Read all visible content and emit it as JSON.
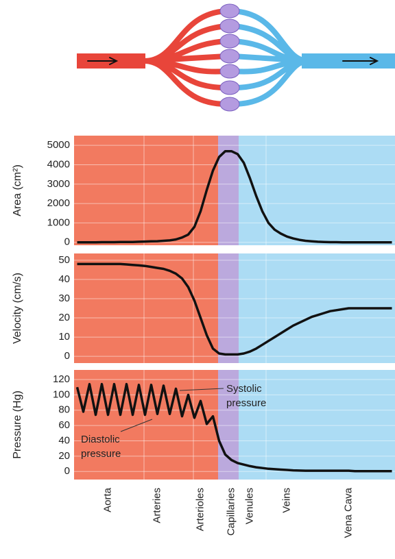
{
  "chart_data": [
    {
      "type": "line",
      "ylabel": "Area (cm²)",
      "color": "#111111",
      "ylim": [
        -150,
        5500
      ],
      "yticks": [
        0,
        1000,
        2000,
        3000,
        4000,
        5000
      ],
      "grid": true,
      "values": [
        0,
        0,
        0,
        0,
        10,
        10,
        10,
        20,
        20,
        20,
        30,
        40,
        50,
        60,
        80,
        100,
        150,
        250,
        400,
        800,
        1600,
        2700,
        3700,
        4400,
        4700,
        4700,
        4550,
        4100,
        3300,
        2400,
        1600,
        1000,
        650,
        450,
        300,
        200,
        130,
        80,
        50,
        30,
        20,
        10,
        10,
        0,
        0,
        0,
        0,
        0,
        0,
        0,
        0,
        0
      ]
    },
    {
      "type": "line",
      "ylabel": "Velocity (cm/s)",
      "color": "#111111",
      "ylim": [
        -3.5,
        53.5
      ],
      "yticks": [
        0,
        10,
        20,
        30,
        40,
        50
      ],
      "grid": true,
      "values": [
        48,
        48,
        48,
        48,
        48,
        48,
        48,
        48,
        47.8,
        47.5,
        47.3,
        47,
        46.5,
        46,
        45.5,
        44.5,
        43,
        40.5,
        36,
        29,
        20,
        11,
        4,
        1.5,
        1,
        1,
        1,
        1.5,
        2.5,
        4,
        6,
        8,
        10,
        12,
        14,
        16,
        17.5,
        19,
        20.5,
        21.5,
        22.5,
        23.5,
        24,
        24.5,
        25,
        25,
        25,
        25,
        25,
        25,
        25,
        25
      ]
    },
    {
      "type": "line",
      "ylabel": "Pressure (Hg)",
      "color": "#111111",
      "ylim": [
        -10.5,
        132.5
      ],
      "yticks": [
        0,
        20,
        40,
        60,
        80,
        100,
        120
      ],
      "grid": true,
      "values": [
        110,
        78,
        114,
        74,
        114,
        74,
        114,
        74,
        114,
        74,
        113,
        74,
        113,
        75,
        112,
        75,
        108,
        72,
        100,
        70,
        92,
        62,
        72,
        40,
        22,
        15,
        11,
        9,
        7,
        5.5,
        4.5,
        3.5,
        3,
        2.5,
        2,
        1.5,
        1.2,
        1,
        1,
        1,
        1,
        1,
        1,
        1,
        1,
        0.5,
        0.5,
        0.5,
        0.5,
        0.5,
        0.5,
        0.5
      ],
      "categories": [
        null,
        null,
        null,
        null,
        null,
        "Aorta",
        null,
        null,
        null,
        null,
        null,
        null,
        null,
        "Arteries",
        null,
        null,
        null,
        null,
        null,
        null,
        "Arterioles",
        null,
        null,
        null,
        null,
        "Capillaries",
        null,
        null,
        "Venules",
        null,
        null,
        null,
        null,
        null,
        "Veins",
        null,
        null,
        null,
        null,
        null,
        null,
        null,
        null,
        null,
        "Vena Cava",
        null,
        null,
        null,
        null,
        null,
        null,
        null
      ],
      "annotations": [
        [
          "Systolic",
          "pressure"
        ],
        [
          "Diastolic",
          "pressure"
        ]
      ]
    }
  ]
}
